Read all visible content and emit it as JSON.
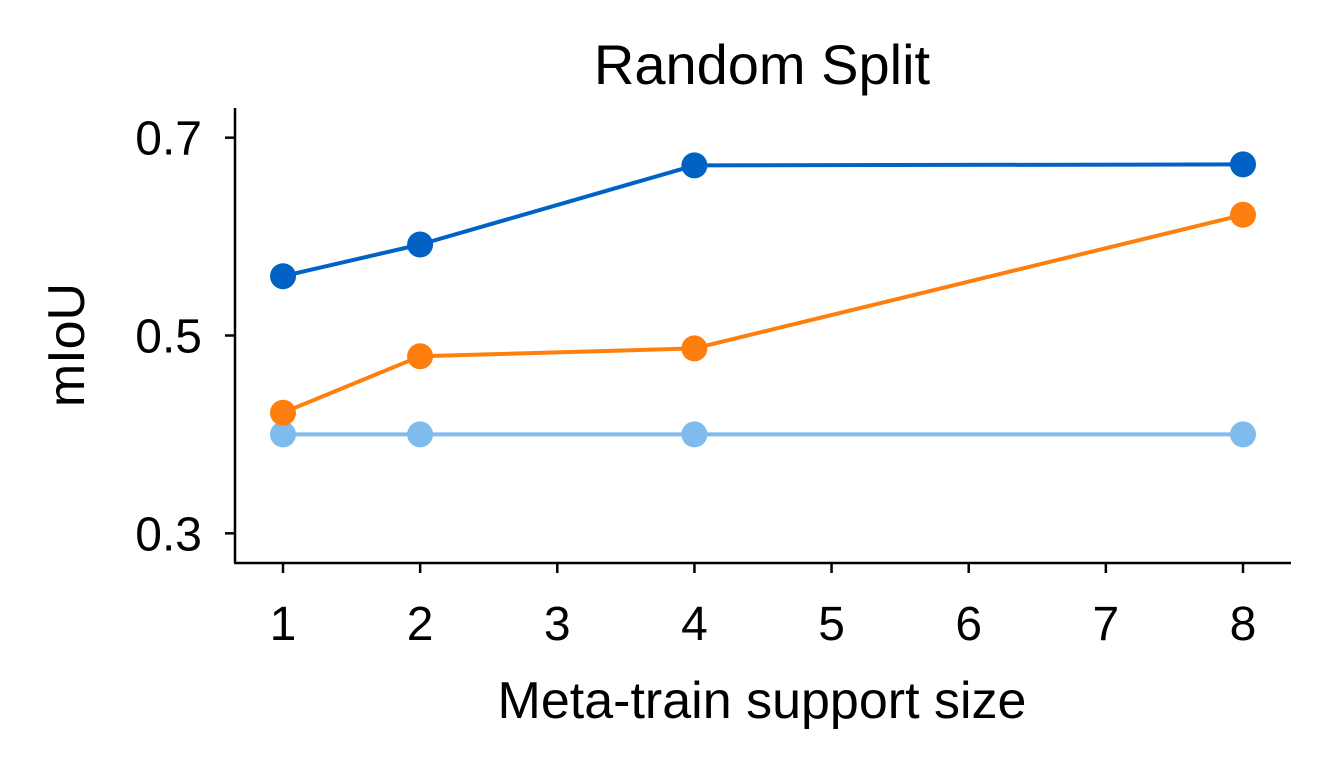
{
  "chart_data": {
    "type": "line",
    "title": "Random Split",
    "xlabel": "Meta-train support size",
    "ylabel": "mIoU",
    "xlim": [
      0.65,
      8.35
    ],
    "ylim": [
      0.27,
      0.73
    ],
    "xticks": [
      1,
      2,
      3,
      4,
      5,
      6,
      7,
      8
    ],
    "yticks": [
      0.3,
      0.5,
      0.7
    ],
    "ytick_labels": [
      "0.3",
      "0.5",
      "0.7"
    ],
    "grid": false,
    "legend": null,
    "series": [
      {
        "color": "#0062c4",
        "x": [
          1,
          2,
          4,
          8
        ],
        "y": [
          0.56,
          0.592,
          0.672,
          0.673
        ]
      },
      {
        "color": "#fe7f0e",
        "x": [
          1,
          2,
          4,
          8
        ],
        "y": [
          0.422,
          0.479,
          0.487,
          0.622
        ]
      },
      {
        "color": "#7fbbec",
        "x": [
          1,
          2,
          4,
          8
        ],
        "y": [
          0.4,
          0.4,
          0.4,
          0.4
        ]
      }
    ]
  }
}
